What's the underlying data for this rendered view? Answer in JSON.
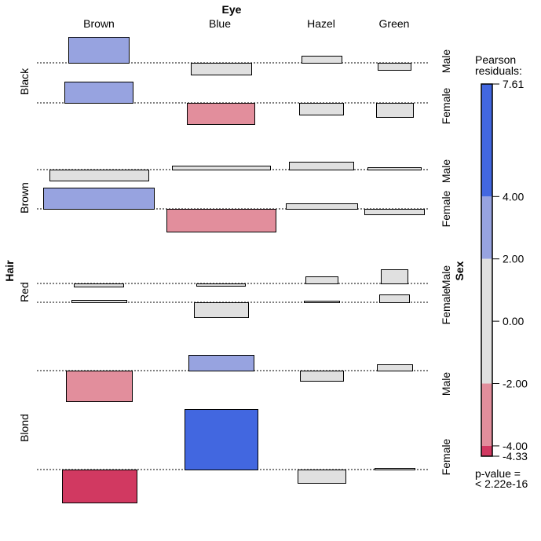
{
  "chart_data": {
    "type": "association-plot",
    "x_variable": "Eye",
    "y_variable": "Hair",
    "z_variable": "Sex",
    "eye_levels": [
      "Brown",
      "Blue",
      "Hazel",
      "Green"
    ],
    "hair_levels": [
      "Black",
      "Brown",
      "Red",
      "Blond"
    ],
    "sex_levels": [
      "Male",
      "Female"
    ],
    "residuals": {
      "Black": {
        "Male": [
          3.2,
          -1.5,
          1.3,
          -1.7
        ],
        "Female": [
          2.6,
          -2.5,
          -1.3,
          -1.6
        ]
      },
      "Brown": {
        "Male": [
          -1.0,
          0.4,
          1.0,
          0.4
        ],
        "Female": [
          2.1,
          -2.3,
          0.8,
          -0.6
        ]
      },
      "Red": {
        "Male": [
          -0.5,
          -0.4,
          1.2,
          1.9
        ],
        "Female": [
          0.4,
          -1.4,
          0.3,
          1.2
        ]
      },
      "Blond": {
        "Male": [
          -3.5,
          2.1,
          -1.2,
          0.9
        ],
        "Female": [
          -4.33,
          7.61,
          -1.3,
          0.2
        ]
      }
    },
    "legend": {
      "title_line1": "Pearson",
      "title_line2": "residuals:",
      "range": [
        -4.33,
        7.61
      ],
      "ticks": [
        "7.61",
        "4.00",
        "2.00",
        "0.00",
        "-2.00",
        "-4.00",
        "-4.33"
      ],
      "tick_values": [
        7.61,
        4,
        2,
        0,
        -2,
        -4,
        -4.33
      ],
      "bins": [
        {
          "from": 4,
          "to": 7.61,
          "color": "#4267E0"
        },
        {
          "from": 2,
          "to": 4,
          "color": "#97A3E0"
        },
        {
          "from": -2,
          "to": 2,
          "color": "#E0E0E0"
        },
        {
          "from": -4,
          "to": -2,
          "color": "#E28E9C"
        },
        {
          "from": -4.33,
          "to": -4,
          "color": "#D13961"
        }
      ],
      "pvalue_line1": "p-value =",
      "pvalue_line2": "< 2.22e-16"
    }
  }
}
